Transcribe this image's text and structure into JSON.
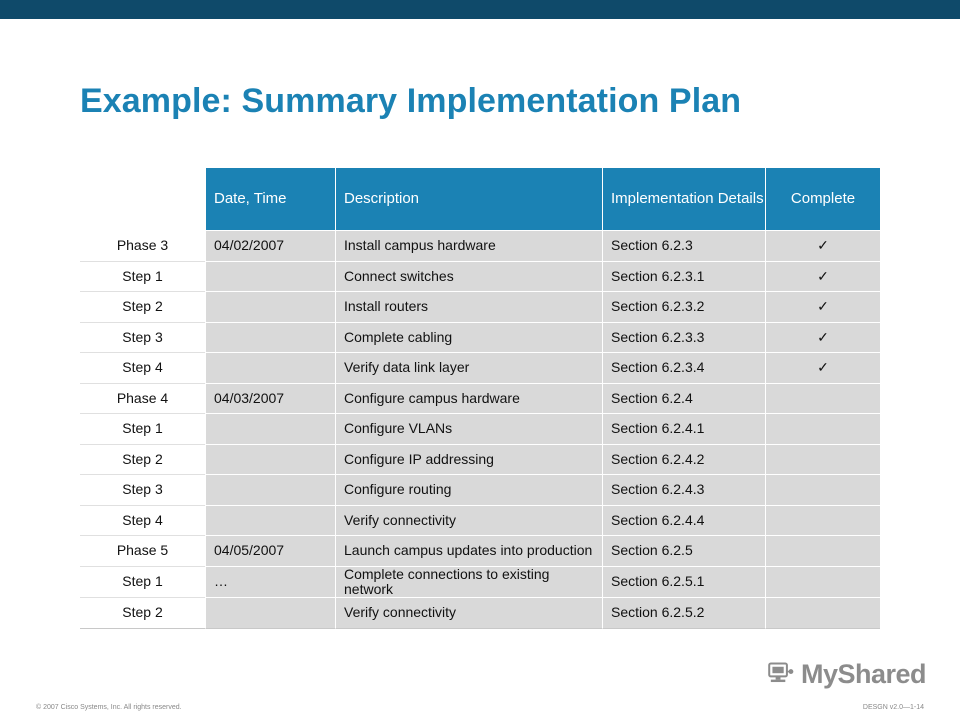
{
  "slide": {
    "title": "Example: Summary Implementation Plan",
    "header_color": "#1b82b4",
    "topbar_color": "#0f4a6a"
  },
  "table": {
    "columns": [
      "",
      "Date, Time",
      "Description",
      "Implementation Details",
      "Complete"
    ],
    "rows": [
      {
        "label": "Phase 3",
        "date": "04/02/2007",
        "description": "Install campus hardware",
        "details": "Section 6.2.3",
        "complete": "✓"
      },
      {
        "label": "Step 1",
        "date": "",
        "description": "Connect switches",
        "details": "Section 6.2.3.1",
        "complete": "✓"
      },
      {
        "label": "Step 2",
        "date": "",
        "description": "Install routers",
        "details": "Section 6.2.3.2",
        "complete": "✓"
      },
      {
        "label": "Step 3",
        "date": "",
        "description": "Complete cabling",
        "details": "Section 6.2.3.3",
        "complete": "✓"
      },
      {
        "label": "Step 4",
        "date": "",
        "description": "Verify data link layer",
        "details": "Section 6.2.3.4",
        "complete": "✓"
      },
      {
        "label": "Phase 4",
        "date": "04/03/2007",
        "description": "Configure campus hardware",
        "details": "Section 6.2.4",
        "complete": ""
      },
      {
        "label": "Step 1",
        "date": "",
        "description": "Configure VLANs",
        "details": "Section 6.2.4.1",
        "complete": ""
      },
      {
        "label": "Step 2",
        "date": "",
        "description": "Configure IP addressing",
        "details": "Section 6.2.4.2",
        "complete": ""
      },
      {
        "label": "Step 3",
        "date": "",
        "description": "Configure routing",
        "details": "Section 6.2.4.3",
        "complete": ""
      },
      {
        "label": "Step 4",
        "date": "",
        "description": "Verify connectivity",
        "details": "Section 6.2.4.4",
        "complete": ""
      },
      {
        "label": "Phase 5",
        "date": "04/05/2007",
        "description": "Launch campus updates into production",
        "details": "Section 6.2.5",
        "complete": ""
      },
      {
        "label": "Step 1",
        "date": "…",
        "description": "Complete connections to existing network",
        "details": "Section 6.2.5.1",
        "complete": ""
      },
      {
        "label": "Step 2",
        "date": "",
        "description": "Verify connectivity",
        "details": "Section 6.2.5.2",
        "complete": ""
      }
    ]
  },
  "footer": {
    "copyright": "© 2007 Cisco Systems, Inc. All rights reserved.",
    "course": "DESGN v2.0—1-14"
  },
  "logo": {
    "text": "MyShared",
    "icon": "monitor-network-icon"
  }
}
